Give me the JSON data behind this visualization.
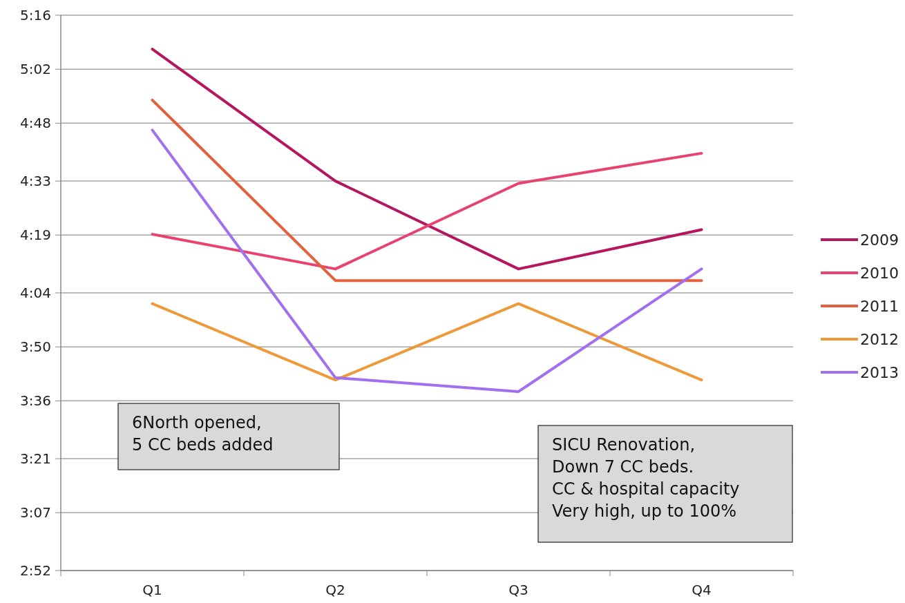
{
  "chart_data": {
    "type": "line",
    "categories": [
      "Q1",
      "Q2",
      "Q3",
      "Q4"
    ],
    "series": [
      {
        "name": "2009",
        "color": "#b5175f",
        "values": [
          5.12,
          4.55,
          4.17,
          4.34
        ]
      },
      {
        "name": "2010",
        "color": "#e8436e",
        "values": [
          4.32,
          4.17,
          4.54,
          4.67
        ]
      },
      {
        "name": "2011",
        "color": "#e2603c",
        "values": [
          4.9,
          4.12,
          4.12,
          4.12
        ]
      },
      {
        "name": "2012",
        "color": "#ee9a3a",
        "values": [
          4.02,
          3.69,
          4.02,
          3.69
        ]
      },
      {
        "name": "2013",
        "color": "#a070ef",
        "values": [
          4.77,
          3.7,
          3.64,
          4.17
        ]
      }
    ],
    "ylim": [
      2.8667,
      5.2667
    ],
    "yticks": [
      {
        "value": 2.8667,
        "label": "2:52"
      },
      {
        "value": 3.1167,
        "label": "3:07"
      },
      {
        "value": 3.35,
        "label": "3:21"
      },
      {
        "value": 3.6,
        "label": "3:36"
      },
      {
        "value": 3.8333,
        "label": "3:50"
      },
      {
        "value": 4.0667,
        "label": "4:04"
      },
      {
        "value": 4.3167,
        "label": "4:19"
      },
      {
        "value": 4.55,
        "label": "4:33"
      },
      {
        "value": 4.8,
        "label": "4:48"
      },
      {
        "value": 5.0333,
        "label": "5:02"
      },
      {
        "value": 5.2667,
        "label": "5:16"
      }
    ],
    "grid": "y",
    "legend": "right",
    "marker": "none",
    "line_style": "solid",
    "annotations": [
      "6North opened,\n5 CC beds added",
      "SICU Renovation,\nDown 7 CC beds.\nCC & hospital capacity\nVery high, up to 100%"
    ]
  }
}
